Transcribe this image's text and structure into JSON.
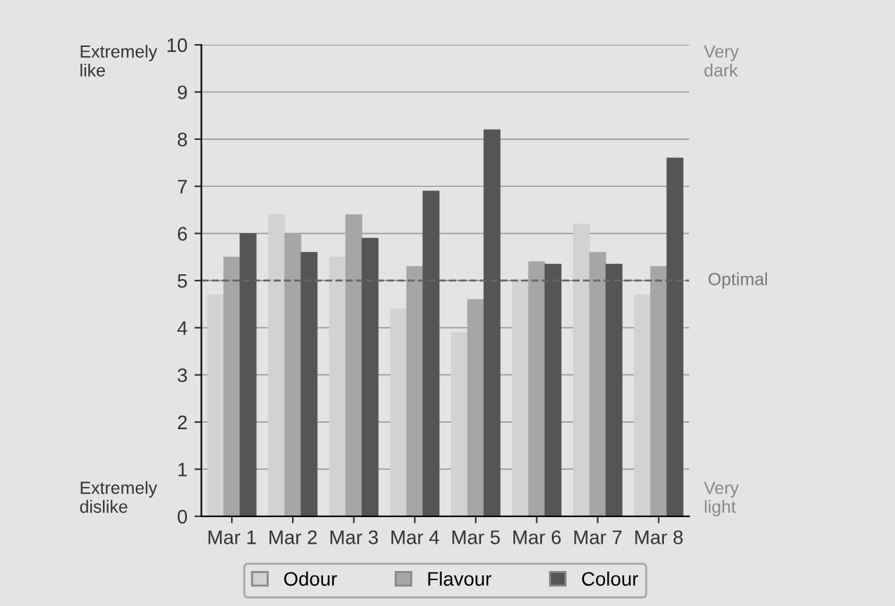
{
  "chart_data": {
    "type": "bar",
    "categories": [
      "Mar 1",
      "Mar 2",
      "Mar 3",
      "Mar 4",
      "Mar 5",
      "Mar 6",
      "Mar 7",
      "Mar 8"
    ],
    "series": [
      {
        "name": "Odour",
        "color": "#d2d2d2",
        "values": [
          4.7,
          6.4,
          5.5,
          4.4,
          3.9,
          5.0,
          6.2,
          4.7
        ]
      },
      {
        "name": "Flavour",
        "color": "#a6a6a6",
        "values": [
          5.5,
          6.0,
          6.4,
          5.3,
          4.6,
          5.4,
          5.6,
          5.3
        ]
      },
      {
        "name": "Colour",
        "color": "#555555",
        "values": [
          6.0,
          5.6,
          5.9,
          6.9,
          8.2,
          5.35,
          5.35,
          7.6
        ]
      }
    ],
    "ylim": [
      0,
      10
    ],
    "yticks": [
      0,
      1,
      2,
      3,
      4,
      5,
      6,
      7,
      8,
      9,
      10
    ],
    "grid": "y",
    "legend": "bottom",
    "ref_lines": [
      {
        "axis": "y",
        "value": 5,
        "label": "Optimal",
        "color": "#666666",
        "line_style": "dashed"
      }
    ],
    "annotations": [
      "Extremely\nlike",
      "Extremely\ndislike",
      "Very\ndark",
      "Very\nlight"
    ]
  }
}
